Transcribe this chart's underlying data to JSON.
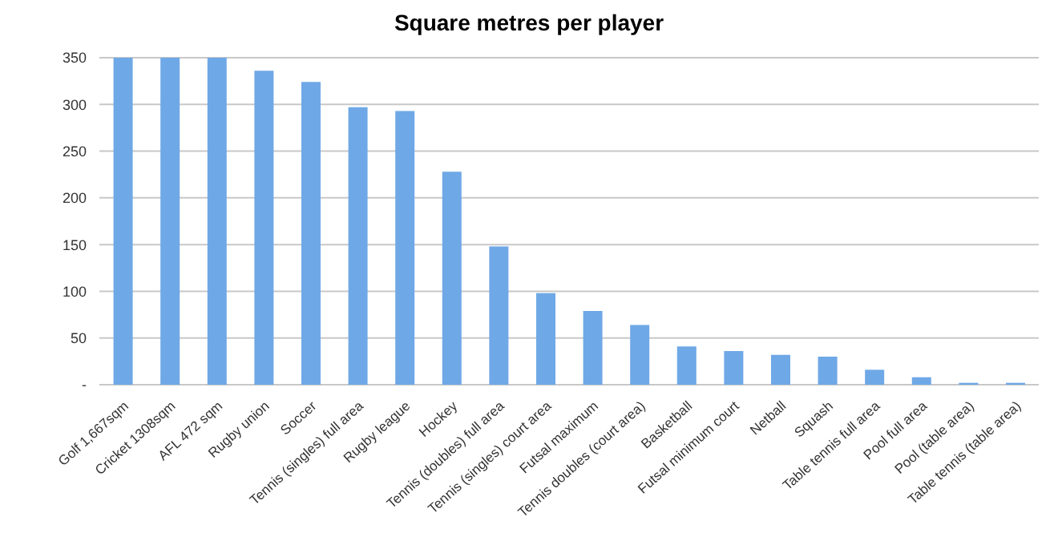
{
  "chart_data": {
    "type": "bar",
    "title": "Square metres per player",
    "categories": [
      "Golf 1,667sqm",
      "Cricket 1308sqm",
      "AFL 472 sqm",
      "Rugby union",
      "Soccer",
      "Tennis (singles) full area",
      "Rugby league",
      "Hockey",
      "Tennis (doubles) full area",
      "Tennis (singles) court area",
      "Futsal maximum",
      "Tennis doubles (court area)",
      "Basketball",
      "Futsal minimum court",
      "Netball",
      "Squash",
      "Table tennis full area",
      "Pool full area",
      "Pool (table area)",
      "Table tennis (table area)"
    ],
    "values": [
      350,
      350,
      350,
      336,
      324,
      297,
      293,
      228,
      148,
      98,
      79,
      64,
      41,
      36,
      32,
      30,
      16,
      8,
      2,
      2
    ],
    "color": "#6fa8e6",
    "ylim": [
      0,
      350
    ],
    "yticks": [
      {
        "value": 0,
        "label": "-"
      },
      50,
      100,
      150,
      200,
      250,
      300,
      350
    ],
    "grid": "y"
  }
}
